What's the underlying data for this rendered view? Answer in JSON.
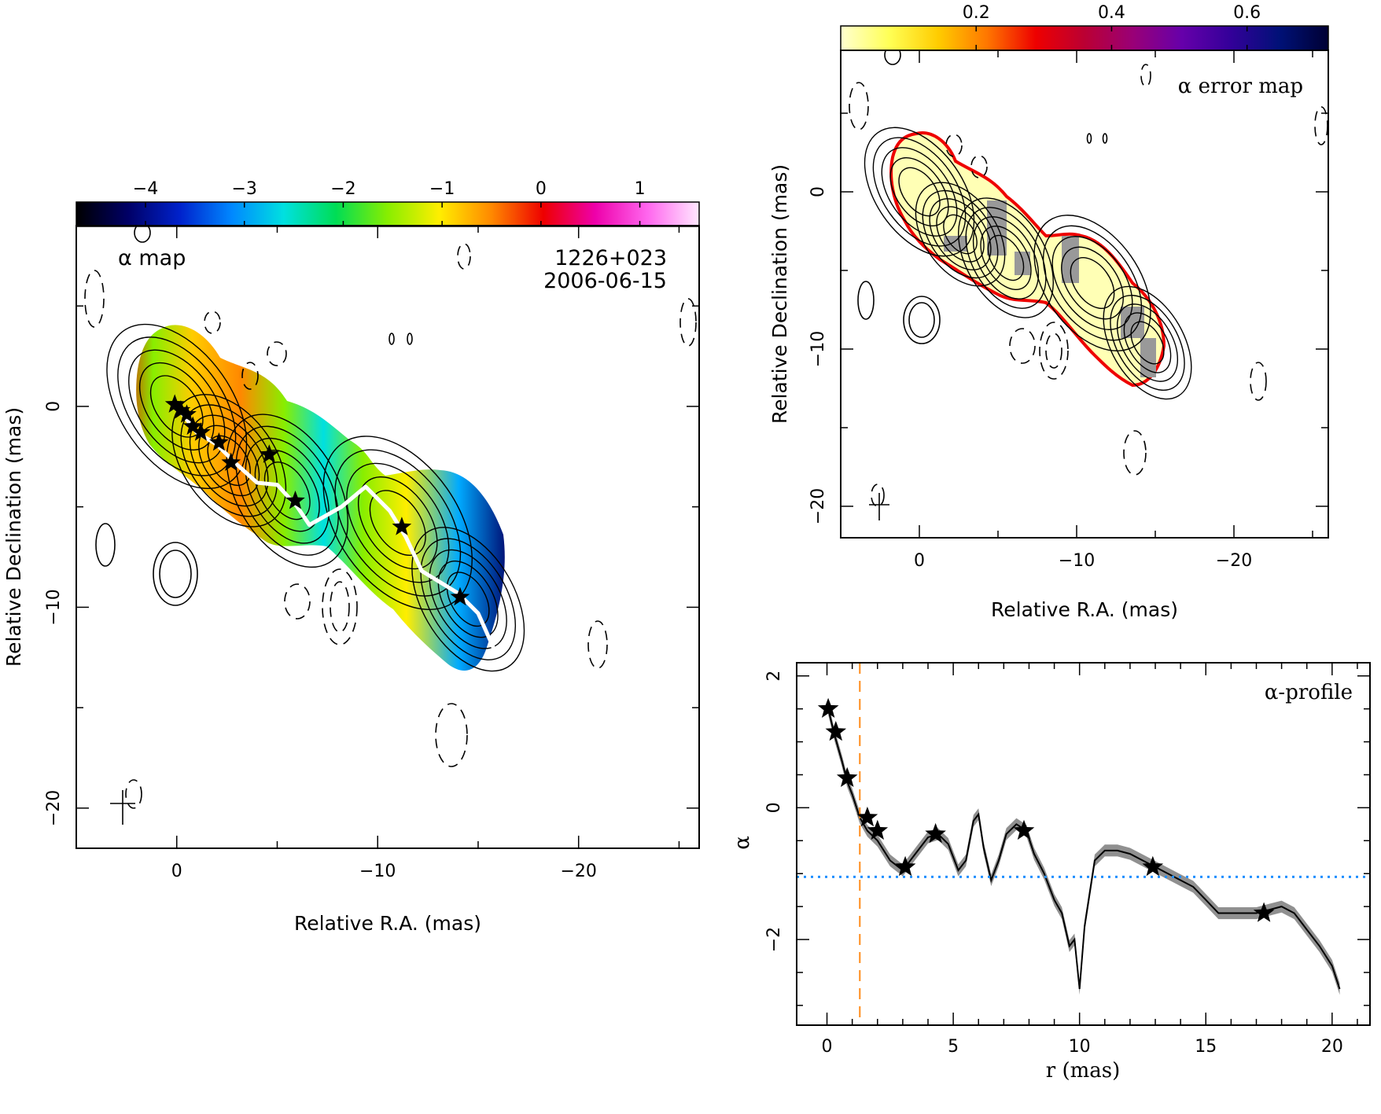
{
  "chart_data": [
    {
      "id": "alpha_map",
      "type": "heatmap",
      "title": "α map",
      "source": "1226+023",
      "date": "2006-06-15",
      "xlabel": "Relative R.A. (mas)",
      "ylabel": "Relative Declination (mas)",
      "xlim": [
        5,
        -26
      ],
      "ylim": [
        -22,
        9
      ],
      "xticks": [
        0,
        -10,
        -20
      ],
      "yticks": [
        0,
        -10,
        -20
      ],
      "colorbar": {
        "range": [
          -4.7,
          1.6
        ],
        "ticks": [
          -4,
          -3,
          -2,
          -1,
          0,
          1
        ],
        "colormap": [
          "#000000",
          "#000066",
          "#0022cc",
          "#0088ff",
          "#00e0e0",
          "#00dd55",
          "#88ee00",
          "#ffee00",
          "#ff8800",
          "#ee0000",
          "#ee00aa",
          "#ff66ee",
          "#ffe8ff"
        ]
      },
      "stars": [
        {
          "x": 0.1,
          "y": 0.1
        },
        {
          "x": -0.2,
          "y": -0.2
        },
        {
          "x": -0.5,
          "y": -0.4
        },
        {
          "x": -0.8,
          "y": -1.0
        },
        {
          "x": -1.2,
          "y": -1.3
        },
        {
          "x": -2.1,
          "y": -1.8
        },
        {
          "x": -2.7,
          "y": -2.8
        },
        {
          "x": -4.6,
          "y": -2.4
        },
        {
          "x": -5.9,
          "y": -4.7
        },
        {
          "x": -11.2,
          "y": -6.0
        },
        {
          "x": -14.1,
          "y": -9.5
        }
      ],
      "ridge_line": [
        {
          "x": 0,
          "y": 0
        },
        {
          "x": -1,
          "y": -1.3
        },
        {
          "x": -2,
          "y": -1.9
        },
        {
          "x": -3,
          "y": -2.9
        },
        {
          "x": -4,
          "y": -3.8
        },
        {
          "x": -5,
          "y": -3.9
        },
        {
          "x": -6,
          "y": -5.0
        },
        {
          "x": -6.6,
          "y": -5.9
        },
        {
          "x": -8.2,
          "y": -5.0
        },
        {
          "x": -9.4,
          "y": -4.0
        },
        {
          "x": -10.6,
          "y": -5.2
        },
        {
          "x": -11.4,
          "y": -6.5
        },
        {
          "x": -12.2,
          "y": -8.2
        },
        {
          "x": -14.0,
          "y": -9.3
        },
        {
          "x": -15.0,
          "y": -10.3
        },
        {
          "x": -15.8,
          "y": -12.1
        }
      ]
    },
    {
      "id": "alpha_error_map",
      "type": "heatmap",
      "title": "α error map",
      "xlabel": "Relative R.A. (mas)",
      "ylabel": "Relative Declination (mas)",
      "xlim": [
        5,
        -26
      ],
      "ylim": [
        -22,
        9
      ],
      "xticks": [
        0,
        -10,
        -20
      ],
      "yticks": [
        0,
        -10,
        -20
      ],
      "colorbar": {
        "range": [
          0,
          0.72
        ],
        "ticks": [
          0.2,
          0.4,
          0.6
        ],
        "colormap": [
          "#ffffd0",
          "#ffff55",
          "#ffcc00",
          "#ff7700",
          "#ee0000",
          "#bb0033",
          "#990077",
          "#6600aa",
          "#330099",
          "#001177",
          "#000033"
        ]
      }
    },
    {
      "id": "alpha_profile",
      "type": "line",
      "title": "α-profile",
      "xlabel": "r (mas)",
      "ylabel": "α",
      "xlim": [
        -1.2,
        21.5
      ],
      "ylim": [
        -3.3,
        2.2
      ],
      "xticks": [
        0,
        5,
        10,
        15,
        20
      ],
      "yticks": [
        2,
        0,
        -2
      ],
      "vline_x": 1.3,
      "hline_y": -1.05,
      "series": [
        {
          "x": [
            0.05,
            0.3,
            0.6,
            0.8,
            1.0,
            1.3,
            1.6,
            2.0,
            2.5,
            3.0,
            3.5,
            4.0,
            4.4,
            4.8,
            5.2,
            5.5,
            5.8,
            6.0,
            6.2,
            6.5,
            6.8,
            7.1,
            7.5,
            7.9,
            8.2,
            8.6,
            9.0,
            9.3,
            9.6,
            9.8,
            10.0,
            10.2,
            10.6,
            11.0,
            11.5,
            12.0,
            12.5,
            13.0,
            13.5,
            14.0,
            14.5,
            15.0,
            15.5,
            16.0,
            16.5,
            17.0,
            17.5,
            18.0,
            18.5,
            19.0,
            19.5,
            20.0,
            20.3
          ],
          "y": [
            1.5,
            1.1,
            0.7,
            0.4,
            0.2,
            -0.15,
            -0.35,
            -0.5,
            -0.8,
            -0.95,
            -0.7,
            -0.45,
            -0.4,
            -0.55,
            -0.95,
            -0.8,
            -0.2,
            -0.1,
            -0.6,
            -1.1,
            -0.8,
            -0.4,
            -0.25,
            -0.35,
            -0.7,
            -1.0,
            -1.4,
            -1.6,
            -2.1,
            -2.0,
            -2.75,
            -1.8,
            -0.8,
            -0.65,
            -0.65,
            -0.7,
            -0.8,
            -0.9,
            -1.0,
            -1.1,
            -1.2,
            -1.4,
            -1.6,
            -1.6,
            -1.6,
            -1.6,
            -1.55,
            -1.5,
            -1.6,
            -1.85,
            -2.1,
            -2.4,
            -2.75
          ],
          "band_halfwidth": 0.09
        }
      ],
      "stars": [
        {
          "x": 0.05,
          "y": 1.5
        },
        {
          "x": 0.35,
          "y": 1.15
        },
        {
          "x": 0.8,
          "y": 0.45
        },
        {
          "x": 1.6,
          "y": -0.15
        },
        {
          "x": 2.0,
          "y": -0.35
        },
        {
          "x": 3.1,
          "y": -0.9
        },
        {
          "x": 4.3,
          "y": -0.4
        },
        {
          "x": 7.8,
          "y": -0.35
        },
        {
          "x": 12.9,
          "y": -0.9
        },
        {
          "x": 17.3,
          "y": -1.6
        }
      ]
    }
  ]
}
